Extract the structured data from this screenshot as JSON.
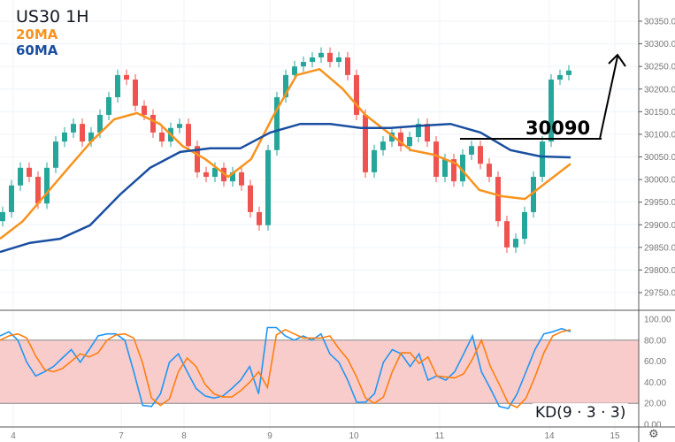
{
  "legend": {
    "title": "US30 1H",
    "ma20_label": "20MA",
    "ma60_label": "60MA",
    "kd_label": "KD(9 · 3 · 3)"
  },
  "annotation": {
    "level_label": "30090",
    "level": 30090
  },
  "colors": {
    "up": "#26a69a",
    "down": "#ef5350",
    "ma20": "#f7931e",
    "ma60": "#1a4fa0",
    "k": "#2196f3",
    "d": "#ff7f0e",
    "band": "#f9cccc"
  },
  "chart_data": {
    "type": "candlestick",
    "title": "US30 1H",
    "price_ticks": [
      "30350.00",
      "30300.00",
      "30250.00",
      "30200.00",
      "30150.00",
      "30100.00",
      "30050.00",
      "30000.00",
      "29950.00",
      "29900.00",
      "29850.00",
      "29800.00",
      "29750.00"
    ],
    "price_range": [
      29720,
      30400
    ],
    "x_ticks": [
      "4",
      "7",
      "8",
      "9",
      "10",
      "11",
      "14",
      "15"
    ],
    "closes": [
      29928,
      29987,
      30026,
      30006,
      29947,
      30026,
      30084,
      30104,
      30123,
      30084,
      30104,
      30143,
      30182,
      30231,
      30221,
      30163,
      30143,
      30104,
      30084,
      30114,
      30123,
      30074,
      30016,
      30006,
      30026,
      29996,
      30016,
      29987,
      29928,
      29899,
      30065,
      30182,
      30231,
      30250,
      30260,
      30270,
      30280,
      30260,
      30270,
      30231,
      30143,
      30016,
      30065,
      30084,
      30104,
      30074,
      30094,
      30123,
      30084,
      30006,
      30045,
      29996,
      30055,
      30074,
      30035,
      30006,
      29908,
      29850,
      29869,
      29928,
      30006,
      30084,
      30221,
      30231,
      30241
    ],
    "ma20": [
      29869,
      29908,
      29967,
      30026,
      30084,
      30133,
      30147,
      30123,
      30074,
      30045,
      30006,
      30045,
      30143,
      30231,
      30244,
      30201,
      30143,
      30104,
      30065,
      30055,
      30035,
      29977,
      29963,
      29957,
      29996,
      30035
    ],
    "ma60": [
      29840,
      29860,
      29869,
      29899,
      29967,
      30026,
      30061,
      30069,
      30069,
      30104,
      30123,
      30123,
      30114,
      30114,
      30119,
      30123,
      30104,
      30065,
      30051,
      30049
    ],
    "kd": {
      "ticks": [
        "100.00",
        "80.00",
        "60.00",
        "40.00",
        "20.00",
        "0.00"
      ],
      "overbought": 80,
      "oversold": 20,
      "k": [
        84,
        88,
        80,
        59,
        46,
        50,
        55,
        63,
        71,
        59,
        71,
        84,
        86,
        86,
        80,
        50,
        18,
        17,
        29,
        59,
        67,
        50,
        34,
        27,
        25,
        27,
        34,
        42,
        55,
        29,
        92,
        92,
        84,
        80,
        84,
        80,
        86,
        67,
        59,
        42,
        21,
        21,
        29,
        59,
        71,
        67,
        55,
        67,
        42,
        46,
        42,
        50,
        67,
        84,
        50,
        34,
        17,
        15,
        29,
        50,
        71,
        86,
        88,
        91,
        88
      ],
      "d": [
        80,
        84,
        86,
        82,
        65,
        52,
        50,
        53,
        60,
        67,
        64,
        68,
        80,
        85,
        86,
        82,
        58,
        25,
        18,
        24,
        50,
        63,
        55,
        38,
        29,
        26,
        26,
        32,
        40,
        50,
        35,
        85,
        90,
        86,
        82,
        82,
        82,
        84,
        72,
        62,
        45,
        25,
        20,
        26,
        50,
        68,
        68,
        58,
        64,
        46,
        45,
        44,
        48,
        62,
        80,
        55,
        38,
        20,
        16,
        25,
        45,
        68,
        84,
        88,
        90
      ]
    }
  }
}
